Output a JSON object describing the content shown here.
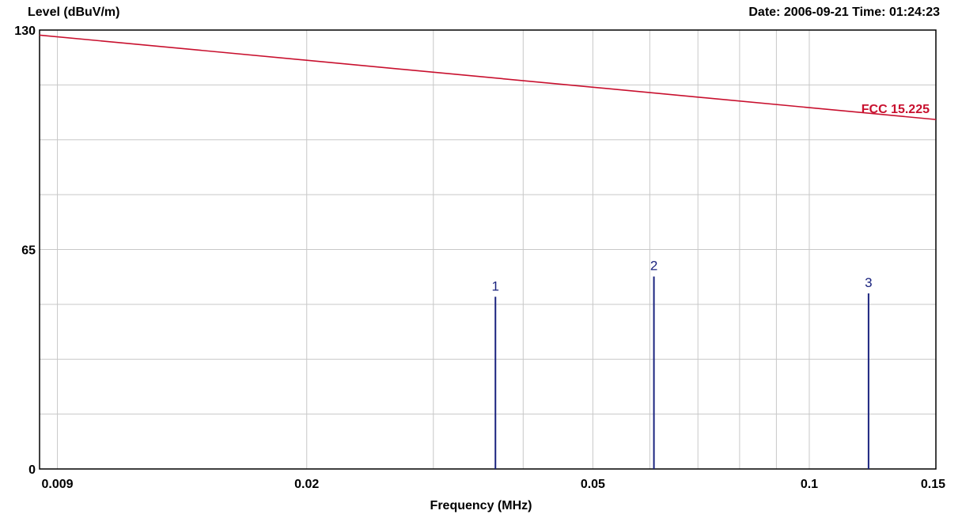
{
  "header": {
    "ylabel": "Level (dBuV/m)",
    "datetime": "Date: 2006-09-21  Time: 01:24:23"
  },
  "chart_data": {
    "type": "line",
    "xlabel": "Frequency (MHz)",
    "ylabel": "Level (dBuV/m)",
    "x_scale": "log",
    "xlim": [
      0.0085,
      0.15
    ],
    "ylim": [
      0,
      130
    ],
    "grid": true,
    "x_ticks": [
      {
        "value": 0.009,
        "label": "0.009"
      },
      {
        "value": 0.02,
        "label": "0.02"
      },
      {
        "value": 0.05,
        "label": "0.05"
      },
      {
        "value": 0.1,
        "label": "0.1"
      },
      {
        "value": 0.15,
        "label": "0.15"
      }
    ],
    "x_gridlines": [
      0.009,
      0.02,
      0.03,
      0.04,
      0.05,
      0.06,
      0.07,
      0.08,
      0.09,
      0.1
    ],
    "y_ticks": [
      {
        "value": 0,
        "label": "0"
      },
      {
        "value": 65,
        "label": "65"
      },
      {
        "value": 130,
        "label": "130"
      }
    ],
    "y_gridlines": [
      16.25,
      32.5,
      48.75,
      65,
      81.25,
      97.5,
      113.75
    ],
    "limit_line": {
      "name": "FCC 15.225",
      "color": "#c8102e",
      "x": [
        0.0085,
        0.15
      ],
      "y": [
        128.5,
        103.5
      ]
    },
    "peaks": {
      "color": "#1a237e",
      "points": [
        {
          "label": "1",
          "x": 0.0366,
          "y": 51
        },
        {
          "label": "2",
          "x": 0.0608,
          "y": 57
        },
        {
          "label": "3",
          "x": 0.1209,
          "y": 52
        }
      ]
    }
  }
}
